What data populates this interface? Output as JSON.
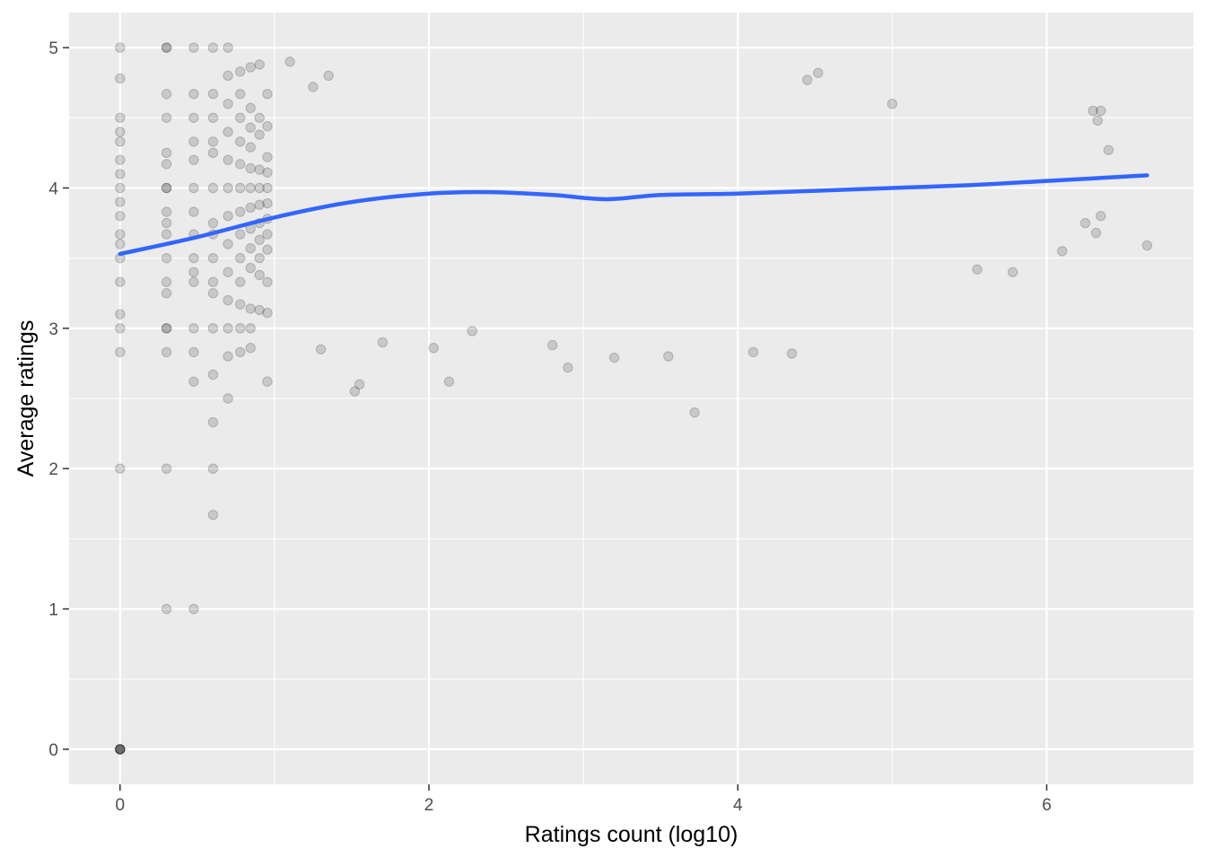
{
  "chart_data": {
    "type": "scatter",
    "title": "",
    "xlabel": "Ratings count (log10)",
    "ylabel": "Average ratings",
    "xlim": [
      -0.33,
      6.95
    ],
    "ylim": [
      -0.25,
      5.25
    ],
    "x_ticks": [
      0,
      2,
      4,
      6
    ],
    "y_ticks": [
      0,
      1,
      2,
      3,
      4,
      5
    ],
    "grid": true,
    "legend": "none",
    "point_color": "#000000",
    "point_alpha": 0.15,
    "panel_background": "#ebebeb",
    "trend_color": "#3366ff",
    "series": [
      {
        "type": "scatter",
        "points": [
          [
            0,
            5
          ],
          [
            0,
            4.78
          ],
          [
            0,
            4.5
          ],
          [
            0,
            4.4
          ],
          [
            0,
            4.33
          ],
          [
            0,
            4.2
          ],
          [
            0,
            4.1
          ],
          [
            0,
            4
          ],
          [
            0,
            3.9
          ],
          [
            0,
            3.8
          ],
          [
            0,
            3.67
          ],
          [
            0,
            3.6
          ],
          [
            0,
            3.5
          ],
          [
            0,
            3.33
          ],
          [
            0,
            3.1
          ],
          [
            0,
            3
          ],
          [
            0,
            2.83
          ],
          [
            0,
            2
          ],
          [
            0,
            0
          ],
          [
            0,
            0
          ],
          [
            0,
            0
          ],
          [
            0,
            0
          ],
          [
            0,
            0
          ],
          [
            0.301,
            5
          ],
          [
            0.301,
            5
          ],
          [
            0.301,
            4.67
          ],
          [
            0.301,
            4.5
          ],
          [
            0.301,
            4.25
          ],
          [
            0.301,
            4.17
          ],
          [
            0.301,
            4
          ],
          [
            0.301,
            4
          ],
          [
            0.301,
            3.83
          ],
          [
            0.301,
            3.75
          ],
          [
            0.301,
            3.67
          ],
          [
            0.301,
            3.5
          ],
          [
            0.301,
            3.33
          ],
          [
            0.301,
            3.25
          ],
          [
            0.301,
            3
          ],
          [
            0.301,
            3
          ],
          [
            0.301,
            2.83
          ],
          [
            0.301,
            2
          ],
          [
            0.301,
            1
          ],
          [
            0.477,
            5
          ],
          [
            0.477,
            4.67
          ],
          [
            0.477,
            4.5
          ],
          [
            0.477,
            4.33
          ],
          [
            0.477,
            4.2
          ],
          [
            0.477,
            4
          ],
          [
            0.477,
            3.83
          ],
          [
            0.477,
            3.67
          ],
          [
            0.477,
            3.5
          ],
          [
            0.477,
            3.4
          ],
          [
            0.477,
            3.33
          ],
          [
            0.477,
            3
          ],
          [
            0.477,
            2.83
          ],
          [
            0.477,
            2.62
          ],
          [
            0.477,
            1
          ],
          [
            0.602,
            5
          ],
          [
            0.602,
            4.67
          ],
          [
            0.602,
            4.5
          ],
          [
            0.602,
            4.33
          ],
          [
            0.602,
            4.25
          ],
          [
            0.602,
            4
          ],
          [
            0.602,
            3.75
          ],
          [
            0.602,
            3.67
          ],
          [
            0.602,
            3.5
          ],
          [
            0.602,
            3.33
          ],
          [
            0.602,
            3.25
          ],
          [
            0.602,
            3
          ],
          [
            0.602,
            2.67
          ],
          [
            0.602,
            2.33
          ],
          [
            0.602,
            2
          ],
          [
            0.602,
            1.67
          ],
          [
            0.699,
            5
          ],
          [
            0.699,
            4.8
          ],
          [
            0.699,
            4.6
          ],
          [
            0.699,
            4.4
          ],
          [
            0.699,
            4.2
          ],
          [
            0.699,
            4
          ],
          [
            0.699,
            3.8
          ],
          [
            0.699,
            3.6
          ],
          [
            0.699,
            3.4
          ],
          [
            0.699,
            3.2
          ],
          [
            0.699,
            3
          ],
          [
            0.699,
            2.8
          ],
          [
            0.699,
            2.5
          ],
          [
            0.778,
            4.83
          ],
          [
            0.778,
            4.67
          ],
          [
            0.778,
            4.5
          ],
          [
            0.778,
            4.33
          ],
          [
            0.778,
            4.17
          ],
          [
            0.778,
            4
          ],
          [
            0.778,
            3.83
          ],
          [
            0.778,
            3.67
          ],
          [
            0.778,
            3.5
          ],
          [
            0.778,
            3.33
          ],
          [
            0.778,
            3.17
          ],
          [
            0.778,
            3
          ],
          [
            0.778,
            2.83
          ],
          [
            0.845,
            4.86
          ],
          [
            0.845,
            4.57
          ],
          [
            0.845,
            4.43
          ],
          [
            0.845,
            4.29
          ],
          [
            0.845,
            4.14
          ],
          [
            0.845,
            4
          ],
          [
            0.845,
            3.86
          ],
          [
            0.845,
            3.71
          ],
          [
            0.845,
            3.57
          ],
          [
            0.845,
            3.43
          ],
          [
            0.845,
            3.14
          ],
          [
            0.845,
            3
          ],
          [
            0.845,
            2.86
          ],
          [
            0.903,
            4.88
          ],
          [
            0.903,
            4.5
          ],
          [
            0.903,
            4.38
          ],
          [
            0.903,
            4.13
          ],
          [
            0.903,
            4
          ],
          [
            0.903,
            3.88
          ],
          [
            0.903,
            3.75
          ],
          [
            0.903,
            3.63
          ],
          [
            0.903,
            3.5
          ],
          [
            0.903,
            3.38
          ],
          [
            0.903,
            3.13
          ],
          [
            0.954,
            4.67
          ],
          [
            0.954,
            4.44
          ],
          [
            0.954,
            4.22
          ],
          [
            0.954,
            4.11
          ],
          [
            0.954,
            4
          ],
          [
            0.954,
            3.89
          ],
          [
            0.954,
            3.78
          ],
          [
            0.954,
            3.67
          ],
          [
            0.954,
            3.56
          ],
          [
            0.954,
            3.33
          ],
          [
            0.954,
            3.11
          ],
          [
            0.954,
            2.62
          ],
          [
            1.1,
            4.9
          ],
          [
            1.25,
            4.72
          ],
          [
            1.35,
            4.8
          ],
          [
            1.3,
            2.85
          ],
          [
            1.52,
            2.55
          ],
          [
            1.55,
            2.6
          ],
          [
            1.7,
            2.9
          ],
          [
            2.03,
            2.86
          ],
          [
            2.13,
            2.62
          ],
          [
            2.28,
            2.98
          ],
          [
            2.8,
            2.88
          ],
          [
            2.9,
            2.72
          ],
          [
            3.2,
            2.79
          ],
          [
            3.55,
            2.8
          ],
          [
            3.72,
            2.4
          ],
          [
            4.1,
            2.83
          ],
          [
            4.35,
            2.82
          ],
          [
            4.45,
            4.77
          ],
          [
            4.52,
            4.82
          ],
          [
            5.0,
            4.6
          ],
          [
            5.55,
            3.42
          ],
          [
            5.78,
            3.4
          ],
          [
            6.1,
            3.55
          ],
          [
            6.25,
            3.75
          ],
          [
            6.32,
            3.68
          ],
          [
            6.35,
            3.8
          ],
          [
            6.65,
            3.59
          ],
          [
            6.3,
            4.55
          ],
          [
            6.35,
            4.55
          ],
          [
            6.33,
            4.48
          ],
          [
            6.4,
            4.27
          ]
        ]
      },
      {
        "type": "line",
        "name": "",
        "points": [
          [
            0,
            3.53
          ],
          [
            0.5,
            3.65
          ],
          [
            1.0,
            3.79
          ],
          [
            1.5,
            3.9
          ],
          [
            2.0,
            3.96
          ],
          [
            2.4,
            3.97
          ],
          [
            2.8,
            3.95
          ],
          [
            3.15,
            3.92
          ],
          [
            3.5,
            3.95
          ],
          [
            4.0,
            3.96
          ],
          [
            4.5,
            3.98
          ],
          [
            5.0,
            4.0
          ],
          [
            5.5,
            4.02
          ],
          [
            6.0,
            4.05
          ],
          [
            6.65,
            4.09
          ]
        ]
      }
    ]
  }
}
